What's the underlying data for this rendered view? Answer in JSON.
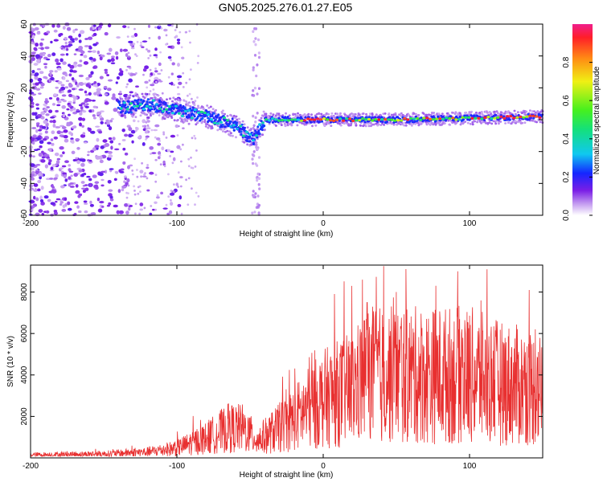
{
  "title": "GN05.2025.276.01.27.E05",
  "chart_data": [
    {
      "type": "heatmap",
      "xlabel": "Height of straight line (km)",
      "ylabel": "Frequency (Hz)",
      "xlim": [
        -200,
        150
      ],
      "ylim": [
        -60,
        60
      ],
      "xticks": [
        -200,
        -100,
        0,
        100
      ],
      "yticks": [
        -60,
        -40,
        -20,
        0,
        20,
        40,
        60
      ],
      "ridge": {
        "x": [
          -135,
          -120,
          -100,
          -80,
          -60,
          -48,
          -40,
          -20,
          0,
          50,
          100,
          150
        ],
        "y": [
          8,
          10,
          6,
          2,
          -4,
          -12,
          0,
          0,
          0,
          0,
          1,
          2
        ]
      },
      "colorbar": {
        "label": "Normalized spectral amplitude",
        "range": [
          0,
          1
        ],
        "ticks": [
          0.0,
          0.2,
          0.4,
          0.6,
          0.8
        ]
      }
    },
    {
      "type": "line",
      "xlabel": "Height of straight line (km)",
      "ylabel": "SNR (10 * v/v)",
      "color": "#e83030",
      "xlim": [
        -200,
        150
      ],
      "ylim": [
        0,
        9300
      ],
      "xticks": [
        -200,
        -100,
        0,
        100
      ],
      "yticks": [
        2000,
        4000,
        6000,
        8000
      ],
      "envelope": {
        "x": [
          -200,
          -150,
          -120,
          -100,
          -80,
          -65,
          -55,
          -45,
          -30,
          -10,
          0,
          20,
          30,
          50,
          80,
          100,
          120,
          150
        ],
        "y": [
          150,
          200,
          300,
          500,
          1000,
          1500,
          1500,
          900,
          1500,
          2500,
          3000,
          3500,
          4200,
          4200,
          4200,
          4200,
          3800,
          3500
        ]
      },
      "peaks": [
        {
          "x": 30,
          "y": 7500
        },
        {
          "x": 50,
          "y": 8000
        },
        {
          "x": 77,
          "y": 8300
        },
        {
          "x": 92,
          "y": 9000
        },
        {
          "x": 112,
          "y": 9100
        },
        {
          "x": 145,
          "y": 6200
        }
      ]
    }
  ]
}
